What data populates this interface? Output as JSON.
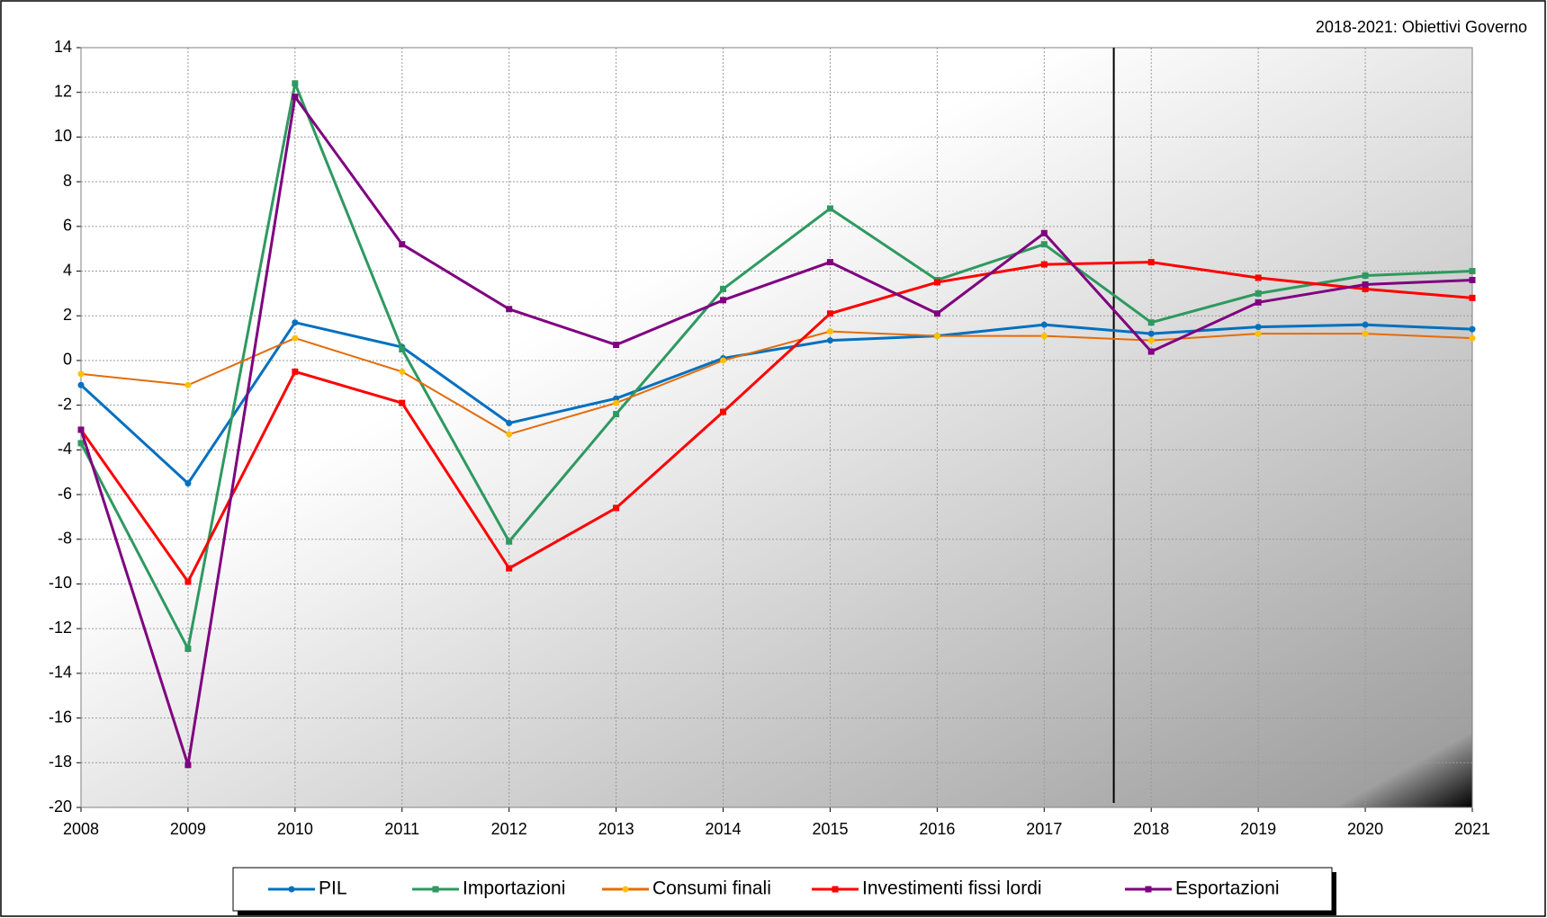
{
  "chart_data": {
    "type": "line",
    "annotation": "2018-2021: Obiettivi Governo",
    "x": [
      2008,
      2009,
      2010,
      2011,
      2012,
      2013,
      2014,
      2015,
      2016,
      2017,
      2018,
      2019,
      2020,
      2021
    ],
    "xlim": [
      2008,
      2021
    ],
    "xticks": [
      2008,
      2009,
      2010,
      2011,
      2012,
      2013,
      2014,
      2015,
      2016,
      2017,
      2018,
      2019,
      2020,
      2021
    ],
    "ylim": [
      -20,
      14
    ],
    "yticks": [
      -20,
      -18,
      -16,
      -14,
      -12,
      -10,
      -8,
      -6,
      -4,
      -2,
      0,
      2,
      4,
      6,
      8,
      10,
      12,
      14
    ],
    "grid": true,
    "legend": "bottom",
    "series": [
      {
        "name": "PIL",
        "color": "#0070c0",
        "values": [
          -1.1,
          -5.5,
          1.7,
          0.6,
          -2.8,
          -1.7,
          0.1,
          0.9,
          1.1,
          1.6,
          1.2,
          1.5,
          1.6,
          1.4
        ]
      },
      {
        "name": "Importazioni",
        "color": "#2e9960",
        "values": [
          -3.7,
          -12.9,
          12.4,
          0.5,
          -8.1,
          -2.4,
          3.2,
          6.8,
          3.6,
          5.2,
          1.7,
          3.0,
          3.8,
          4.0
        ]
      },
      {
        "name": "Consumi finali",
        "color": "#e46c0a",
        "values": [
          -0.6,
          -1.1,
          1.0,
          -0.5,
          -3.3,
          -1.9,
          0.0,
          1.3,
          1.1,
          1.1,
          0.9,
          1.2,
          1.2,
          1.0
        ]
      },
      {
        "name": "Investimenti fissi lordi",
        "color": "#ff0000",
        "values": [
          -3.1,
          -9.9,
          -0.5,
          -1.9,
          -9.3,
          -6.6,
          -2.3,
          2.1,
          3.5,
          4.3,
          4.4,
          3.7,
          3.2,
          2.8
        ]
      },
      {
        "name": "Esportazioni",
        "color": "#7f007f",
        "values": [
          -3.1,
          -18.1,
          11.8,
          5.2,
          2.3,
          0.7,
          2.7,
          4.4,
          2.1,
          5.7,
          0.4,
          2.6,
          3.4,
          3.6
        ]
      }
    ]
  }
}
